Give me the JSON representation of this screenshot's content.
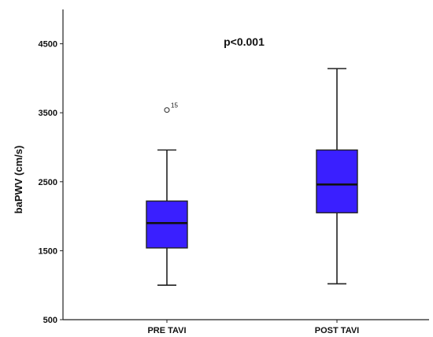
{
  "chart_data": {
    "type": "box",
    "title": "",
    "annotation": "p<0.001",
    "ylabel": "baPWV (cm/s)",
    "xlabel": "",
    "ylim": [
      500,
      5000
    ],
    "yticks": [
      500,
      1500,
      2500,
      3500,
      4500
    ],
    "ytick_labels": [
      "500",
      "1500",
      "2500",
      "3500",
      "4500"
    ],
    "box_color": "#3a1fff",
    "categories": [
      "PRE TAVI",
      "POST TAVI"
    ],
    "boxes": [
      {
        "category": "PRE TAVI",
        "min": 1000,
        "q1": 1540,
        "median": 1900,
        "q3": 2220,
        "max": 2960,
        "outliers": [
          {
            "value": 3540,
            "label": "15"
          }
        ]
      },
      {
        "category": "POST TAVI",
        "min": 1020,
        "q1": 2050,
        "median": 2460,
        "q3": 2960,
        "max": 4140,
        "outliers": []
      }
    ]
  }
}
